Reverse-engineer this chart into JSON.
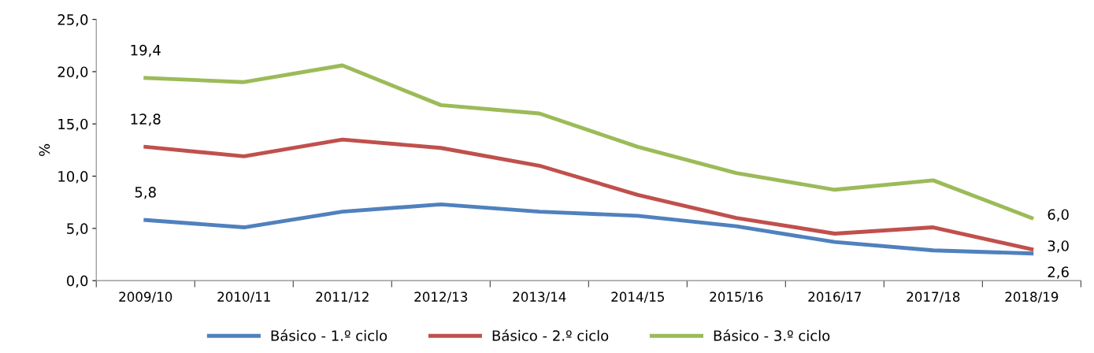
{
  "chart_data": {
    "type": "line",
    "ylabel": "%",
    "categories": [
      "2009/10",
      "2010/11",
      "2011/12",
      "2012/13",
      "2013/14",
      "2014/15",
      "2015/16",
      "2016/17",
      "2017/18",
      "2018/19"
    ],
    "series": [
      {
        "name": "Básico - 1.º ciclo",
        "color": "#4f81bd",
        "values": [
          5.8,
          5.1,
          6.6,
          7.3,
          6.6,
          6.2,
          5.2,
          3.7,
          2.9,
          2.6
        ],
        "value_labels": [
          "5,8",
          null,
          null,
          null,
          null,
          null,
          null,
          null,
          null,
          "2,6"
        ]
      },
      {
        "name": "Básico - 2.º ciclo",
        "color": "#c0504d",
        "values": [
          12.8,
          11.9,
          13.5,
          12.7,
          11.0,
          8.2,
          6.0,
          4.5,
          5.1,
          3.0
        ],
        "value_labels": [
          "12,8",
          null,
          null,
          null,
          null,
          null,
          null,
          null,
          null,
          "3,0"
        ]
      },
      {
        "name": "Básico - 3.º ciclo",
        "color": "#9bbb59",
        "values": [
          19.4,
          19.0,
          20.6,
          16.8,
          16.0,
          12.8,
          10.3,
          8.7,
          9.6,
          6.0
        ],
        "value_labels": [
          "19,4",
          null,
          null,
          null,
          null,
          null,
          null,
          null,
          null,
          "6,0"
        ]
      }
    ],
    "ylim": [
      0,
      25
    ],
    "yticks": [
      {
        "value": 0,
        "label": "0,0"
      },
      {
        "value": 5,
        "label": "5,0"
      },
      {
        "value": 10,
        "label": "10,0"
      },
      {
        "value": 15,
        "label": "15,0"
      },
      {
        "value": 20,
        "label": "20,0"
      },
      {
        "value": 25,
        "label": "25,0"
      }
    ],
    "grid": false,
    "legend": "bottom",
    "marker": "none",
    "line_style": "solid"
  }
}
